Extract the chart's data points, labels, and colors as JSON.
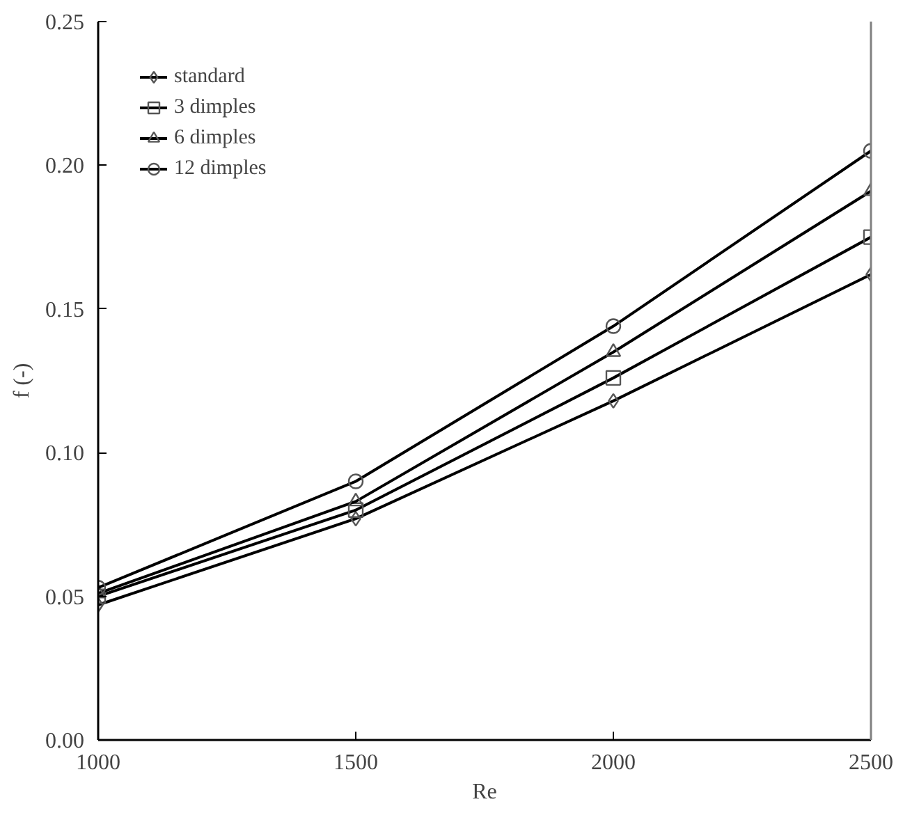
{
  "chart_data": {
    "type": "line",
    "xlabel": "Re",
    "ylabel": "f (-)",
    "x": [
      1000,
      1500,
      2000,
      2500
    ],
    "xlim": [
      1000,
      2500
    ],
    "xticks": [
      1000,
      1500,
      2000,
      2500
    ],
    "ylim": [
      0,
      0.25
    ],
    "yticks": [
      {
        "value": 0,
        "label": "0.00"
      },
      {
        "value": 0.05,
        "label": "0.05"
      },
      {
        "value": 0.1,
        "label": "0.10"
      },
      {
        "value": 0.15,
        "label": "0.15"
      },
      {
        "value": 0.2,
        "label": "0.20"
      },
      {
        "value": 0.25,
        "label": "0.25"
      }
    ],
    "grid": false,
    "legend": "top left",
    "line_style": "solid",
    "series": [
      {
        "name": "standard",
        "color": "#000000",
        "marker": "diamond",
        "values": [
          0.047,
          0.077,
          0.118,
          0.162
        ]
      },
      {
        "name": "3 dimples",
        "color": "#000000",
        "marker": "square",
        "values": [
          0.05,
          0.08,
          0.126,
          0.175
        ]
      },
      {
        "name": "6 dimples",
        "color": "#000000",
        "marker": "triangle",
        "values": [
          0.051,
          0.083,
          0.135,
          0.191
        ]
      },
      {
        "name": "12 dimples",
        "color": "#000000",
        "marker": "circle",
        "values": [
          0.053,
          0.09,
          0.144,
          0.205
        ]
      }
    ]
  }
}
